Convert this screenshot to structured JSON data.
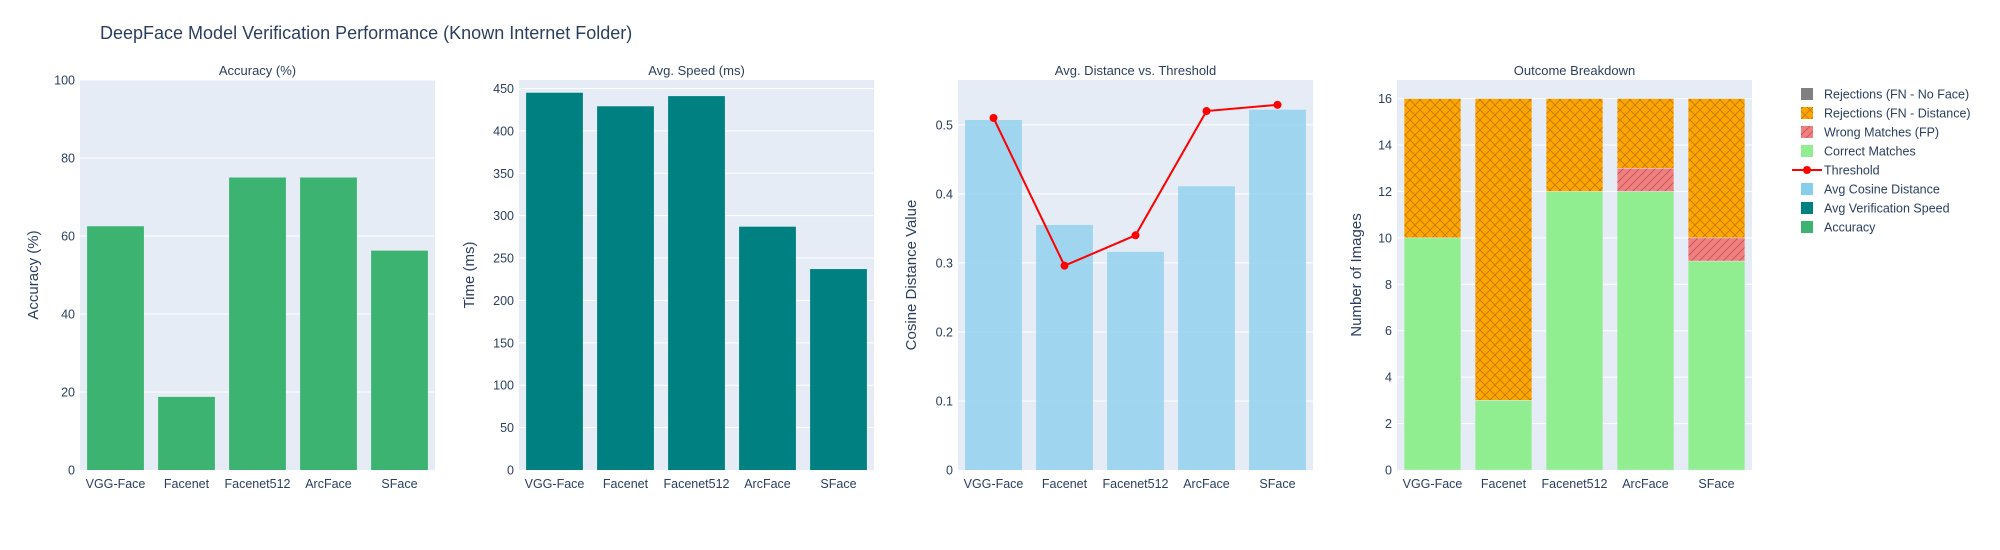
{
  "figure": {
    "title": "DeepFace Model Verification Performance (Known Internet Folder)"
  },
  "colors": {
    "plot_bg": "#E5ECF6",
    "grid": "#ffffff",
    "accuracy": "#3CB371",
    "speed": "#008080",
    "distance": "#87CEEB",
    "threshold": "#FF0000",
    "correct": "#90EE90",
    "wrong": "#F08080",
    "fn_distance": "#FFA500",
    "fn_noface": "#808080"
  },
  "legend": {
    "items": [
      {
        "label": "Rejections (FN - No Face)",
        "kind": "bar",
        "color": "#808080",
        "pattern": "none"
      },
      {
        "label": "Rejections (FN - Distance)",
        "kind": "bar",
        "color": "#FFA500",
        "pattern": "cross"
      },
      {
        "label": "Wrong Matches (FP)",
        "kind": "bar",
        "color": "#F08080",
        "pattern": "diag"
      },
      {
        "label": "Correct Matches",
        "kind": "bar",
        "color": "#90EE90",
        "pattern": "none"
      },
      {
        "label": "Threshold",
        "kind": "line",
        "color": "#FF0000",
        "pattern": "none"
      },
      {
        "label": "Avg Cosine Distance",
        "kind": "bar",
        "color": "#87CEEB",
        "pattern": "none"
      },
      {
        "label": "Avg Verification Speed",
        "kind": "bar",
        "color": "#008080",
        "pattern": "none"
      },
      {
        "label": "Accuracy",
        "kind": "bar",
        "color": "#3CB371",
        "pattern": "none"
      }
    ]
  },
  "chart_data": [
    {
      "type": "bar",
      "title": "Accuracy (%)",
      "xlabel": "",
      "ylabel": "Accuracy (%)",
      "categories": [
        "VGG-Face",
        "Facenet",
        "Facenet512",
        "ArcFace",
        "SFace"
      ],
      "ylim": [
        0,
        100
      ],
      "yticks": [
        0,
        20,
        40,
        60,
        80,
        100
      ],
      "series": [
        {
          "name": "Accuracy",
          "values": [
            62.5,
            18.75,
            75,
            75,
            56.25
          ]
        }
      ]
    },
    {
      "type": "bar",
      "title": "Avg. Speed (ms)",
      "xlabel": "",
      "ylabel": "Time (ms)",
      "categories": [
        "VGG-Face",
        "Facenet",
        "Facenet512",
        "ArcFace",
        "SFace"
      ],
      "ylim": [
        0,
        460
      ],
      "yticks": [
        0,
        50,
        100,
        150,
        200,
        250,
        300,
        350,
        400,
        450
      ],
      "series": [
        {
          "name": "Avg Verification Speed",
          "values": [
            445,
            429,
            441,
            287,
            237
          ]
        }
      ]
    },
    {
      "type": "bar",
      "title": "Avg. Distance vs. Threshold",
      "xlabel": "",
      "ylabel": "Cosine Distance Value",
      "categories": [
        "VGG-Face",
        "Facenet",
        "Facenet512",
        "ArcFace",
        "SFace"
      ],
      "ylim": [
        0,
        0.565
      ],
      "yticks": [
        0,
        0.1,
        0.2,
        0.3,
        0.4,
        0.5
      ],
      "series": [
        {
          "name": "Avg Cosine Distance",
          "values": [
            0.507,
            0.355,
            0.316,
            0.411,
            0.522
          ]
        },
        {
          "name": "Threshold",
          "values": [
            0.51,
            0.296,
            0.34,
            0.52,
            0.529
          ]
        }
      ]
    },
    {
      "type": "bar",
      "stacked": true,
      "title": "Outcome Breakdown",
      "xlabel": "",
      "ylabel": "Number of Images",
      "categories": [
        "VGG-Face",
        "Facenet",
        "Facenet512",
        "ArcFace",
        "SFace"
      ],
      "ylim": [
        0,
        16.8
      ],
      "yticks": [
        0,
        2,
        4,
        6,
        8,
        10,
        12,
        14,
        16
      ],
      "series": [
        {
          "name": "Correct Matches",
          "values": [
            10,
            3,
            12,
            12,
            9
          ]
        },
        {
          "name": "Wrong Matches (FP)",
          "values": [
            0,
            0,
            0,
            1,
            1
          ]
        },
        {
          "name": "Rejections (FN - Distance)",
          "values": [
            6,
            13,
            4,
            3,
            6
          ]
        },
        {
          "name": "Rejections (FN - No Face)",
          "values": [
            0,
            0,
            0,
            0,
            0
          ]
        }
      ]
    }
  ]
}
